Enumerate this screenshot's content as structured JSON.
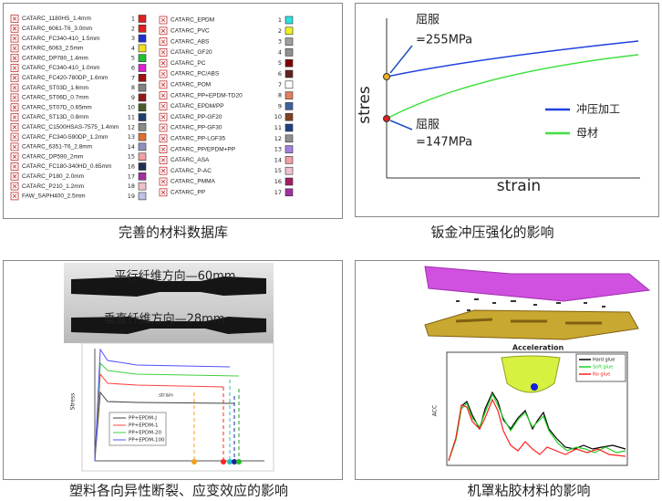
{
  "material_database": {
    "caption": "完善的材料数据库",
    "left": [
      {
        "name": "CATARC_1180HS_1.4mm",
        "number": 1,
        "color": "#e02020"
      },
      {
        "name": "CATARC_6061-T6_3.0mm",
        "number": 2,
        "color": "#e02020"
      },
      {
        "name": "CATARC_FC340-410_1.5mm",
        "number": 3,
        "color": "#2030d0"
      },
      {
        "name": "CATARC_6063_2.5mm",
        "number": 4,
        "color": "#f0e020"
      },
      {
        "name": "CATARC_DP780_1.4mm",
        "number": 5,
        "color": "#20c030"
      },
      {
        "name": "CATARC_FC340-410_1.0mm",
        "number": 6,
        "color": "#e020d0"
      },
      {
        "name": "CATARC_FC420-780DP_1.6mm",
        "number": 7,
        "color": "#a01010"
      },
      {
        "name": "CATARC_ST03D_1.6mm",
        "number": 8,
        "color": "#808080"
      },
      {
        "name": "CATARC_ST06D_0.7mm",
        "number": 9,
        "color": "#901818"
      },
      {
        "name": "CATARC_ST07D_0.65mm",
        "number": 10,
        "color": "#4a5a2a"
      },
      {
        "name": "CATARC_ST13D_0.8mm",
        "number": 11,
        "color": "#1f3f70"
      },
      {
        "name": "CATARC_C1500HSAS-7575_1.4mm",
        "number": 12,
        "color": "#8a8a8a"
      },
      {
        "name": "CATARC_FC340-590DP_1.2mm",
        "number": 13,
        "color": "#e07030"
      },
      {
        "name": "CATARC_6351-T6_2.8mm",
        "number": 14,
        "color": "#9090c0"
      },
      {
        "name": "CATARC_DP590_2mm",
        "number": 15,
        "color": "#f0a0a0"
      },
      {
        "name": "CATARC_FC180-340HD_0.65mm",
        "number": 16,
        "color": "#203050"
      },
      {
        "name": "CATARC_P180_2.0mm",
        "number": 17,
        "color": "#a030a0"
      },
      {
        "name": "CATARC_P210_1.2mm",
        "number": 18,
        "color": "#f0c0c8"
      },
      {
        "name": "FAW_SAPH400_2.5mm",
        "number": 19,
        "color": "#c0c0e8"
      }
    ],
    "right": [
      {
        "name": "CATARC_EPDM",
        "number": 1,
        "color": "#30e0e0"
      },
      {
        "name": "CATARC_PVC",
        "number": 2,
        "color": "#f0f020"
      },
      {
        "name": "CATARC_ABS",
        "number": 3,
        "color": "#a0a0a0"
      },
      {
        "name": "CATARC_GF20",
        "number": 4,
        "color": "#909090"
      },
      {
        "name": "CATARC_PC",
        "number": 5,
        "color": "#800000"
      },
      {
        "name": "CATARC_PC/ABS",
        "number": 6,
        "color": "#602020"
      },
      {
        "name": "CATARC_POM",
        "number": 7,
        "color": "#ffffff"
      },
      {
        "name": "CATARC_PP+EPDM-TD20",
        "number": 8,
        "color": "#e08060"
      },
      {
        "name": "CATARC_EPDM/PP",
        "number": 9,
        "color": "#4060a0"
      },
      {
        "name": "CATARC_PP-GF20",
        "number": 10,
        "color": "#804020"
      },
      {
        "name": "CATARC_PP-GF30",
        "number": 11,
        "color": "#204080"
      },
      {
        "name": "CATARC_PP-LGF35",
        "number": 12,
        "color": "#909090"
      },
      {
        "name": "CATARC_PP/EPDM+PP",
        "number": 13,
        "color": "#a080e0"
      },
      {
        "name": "CATARC_ASA",
        "number": 14,
        "color": "#f0a0a0"
      },
      {
        "name": "CATARC_P-AC",
        "number": 15,
        "color": "#f0c0d0"
      },
      {
        "name": "CATARC_PMMA",
        "number": 16,
        "color": "#a02060"
      },
      {
        "name": "CATARC_PP",
        "number": 17,
        "color": "#a030a0"
      }
    ]
  },
  "stamping": {
    "caption": "钣金冲压强化的影响",
    "yield_high": {
      "label": "屈服",
      "value": "=255MPa"
    },
    "yield_low": {
      "label": "屈服",
      "value": "=147MPa"
    },
    "y_label": "stres",
    "x_label": "strain",
    "legend": [
      {
        "name": "冲压加工",
        "color": "#2040e0"
      },
      {
        "name": "母材",
        "color": "#40e040"
      }
    ]
  },
  "plastic": {
    "caption": "塑料各向异性断裂、应变效应的影响",
    "photo_labels": [
      "平行纤维方向—60mm",
      "垂直纤维方向—28mm"
    ],
    "y_label": "Stress",
    "x_label": "strain",
    "legend": [
      {
        "name": "PP+EPDM-J",
        "color": "#404040"
      },
      {
        "name": "PP+EPDM-1",
        "color": "#ff4040"
      },
      {
        "name": "PP+EPDM-20",
        "color": "#40d040"
      },
      {
        "name": "PP+EPDM-100",
        "color": "#5050ff"
      }
    ]
  },
  "hood_glue": {
    "caption": "机罩粘胶材料的影响",
    "chart_title": "Acceleration",
    "y_label": "ACC",
    "legend": [
      {
        "name": "Hard glue",
        "color": "#000000"
      },
      {
        "name": "Soft glue",
        "color": "#20d020"
      },
      {
        "name": "No glue",
        "color": "#ff2020"
      }
    ]
  }
}
